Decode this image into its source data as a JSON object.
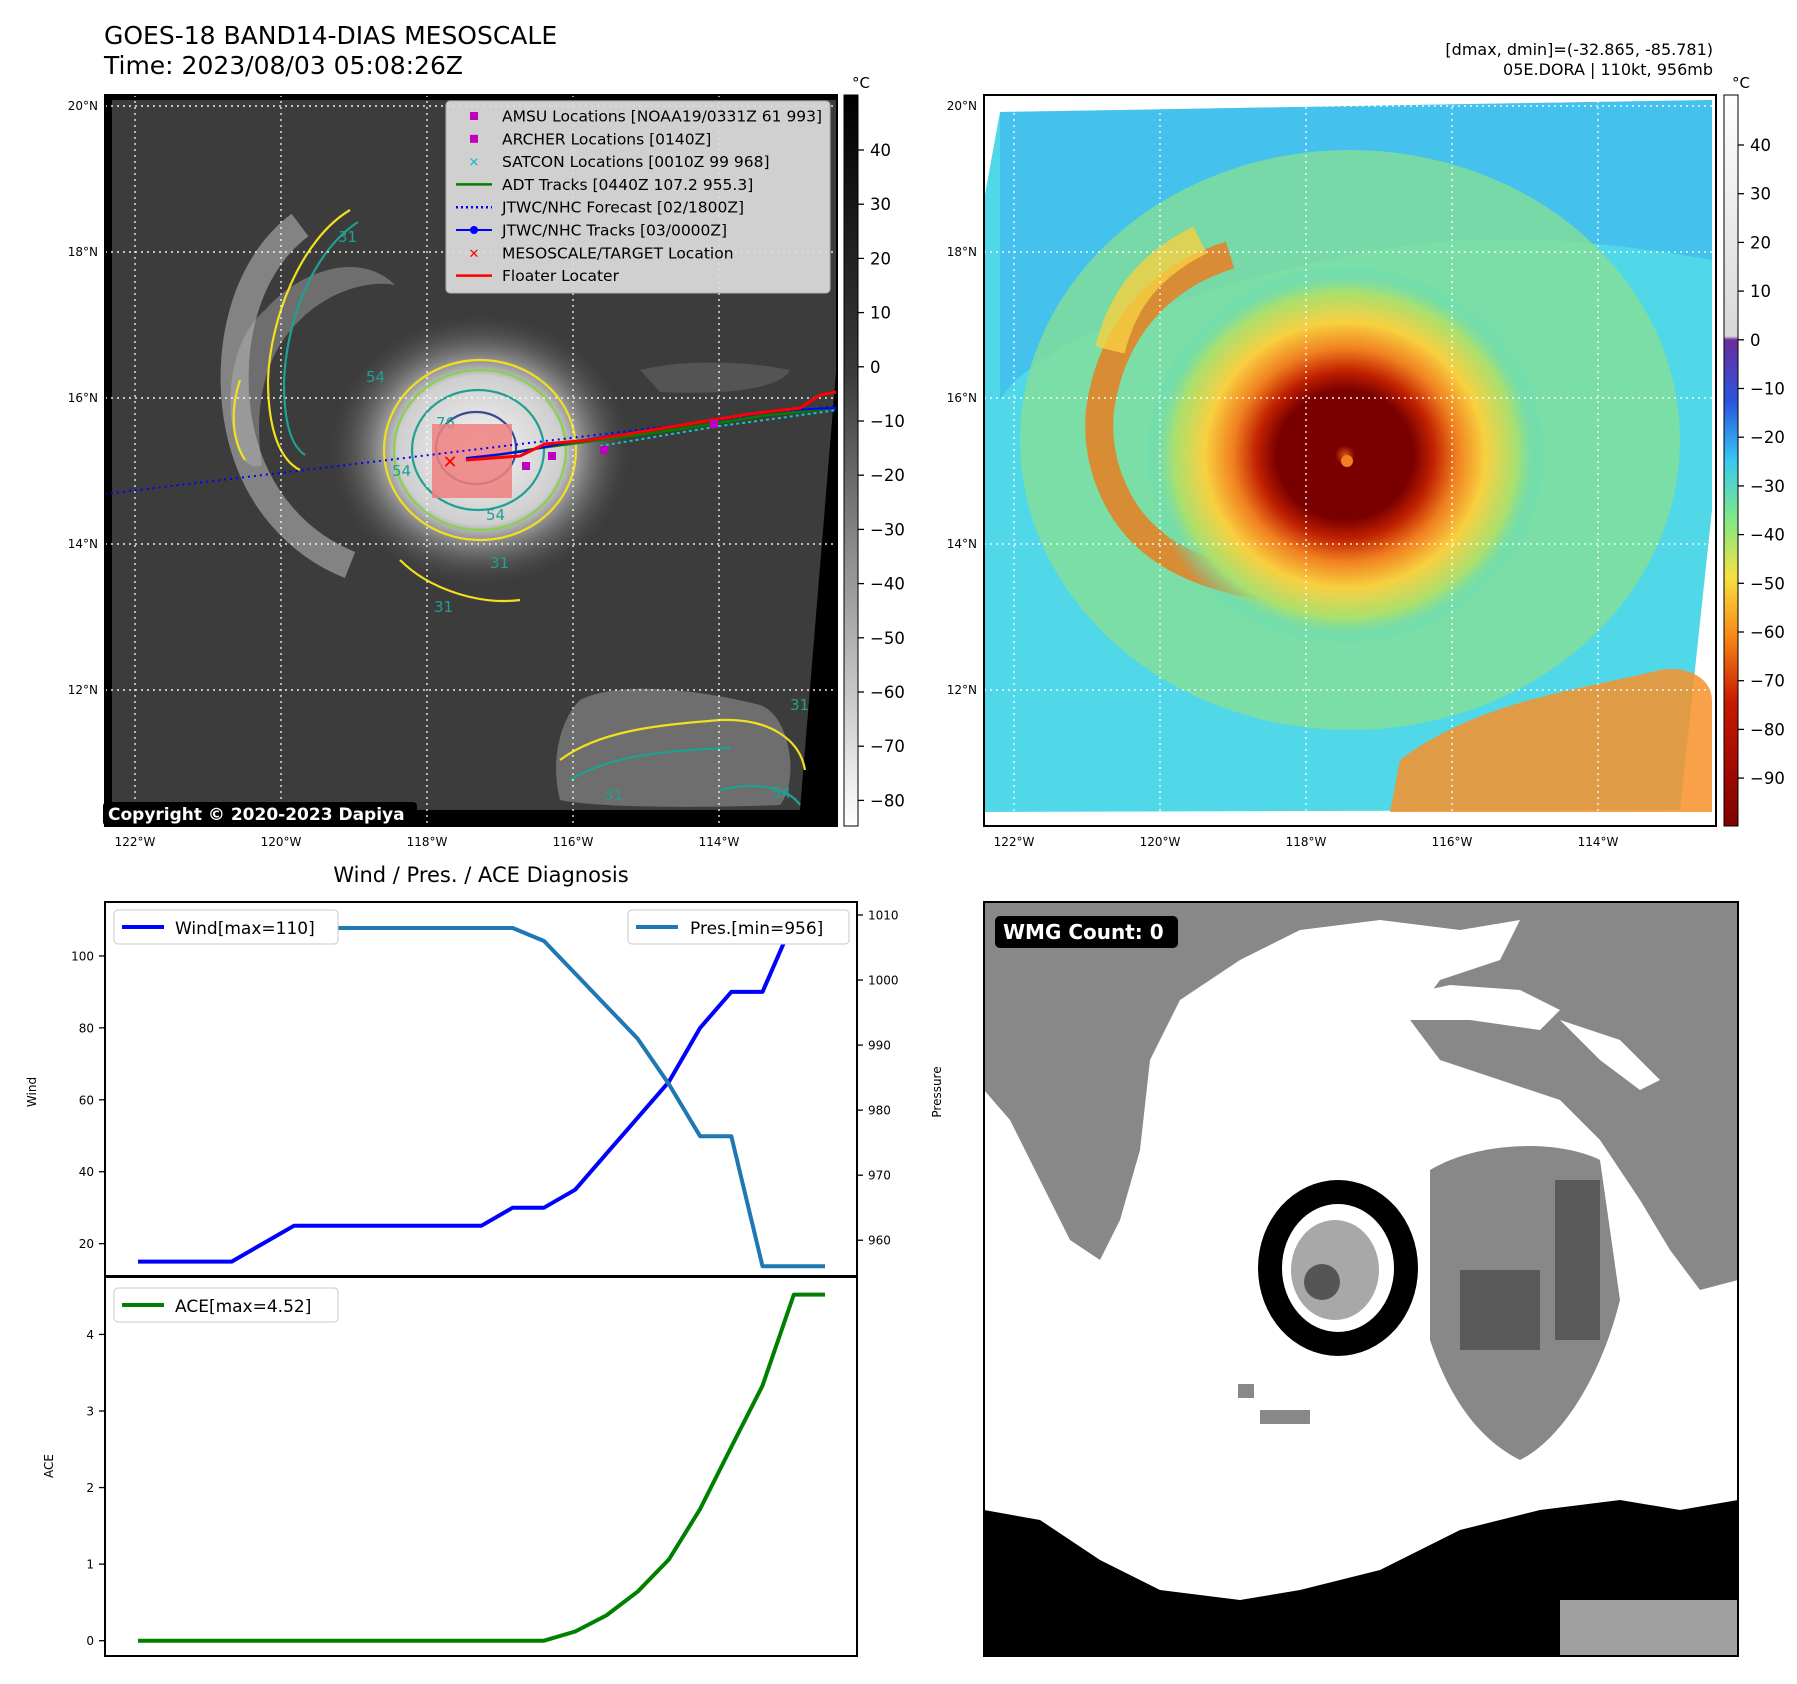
{
  "header": {
    "title_line1": "GOES-18 BAND14-DIAS MESOSCALE",
    "title_line2": "Time: 2023/08/03 05:08:26Z",
    "right_line1": "[dmax, dmin]=(-32.865, -85.781)",
    "right_line2": "05E.DORA | 110kt, 956mb"
  },
  "map_axes": {
    "lat_labels": [
      "20°N",
      "18°N",
      "16°N",
      "14°N",
      "12°N"
    ],
    "lon_labels": [
      "122°W",
      "120°W",
      "118°W",
      "116°W",
      "114°W"
    ]
  },
  "left_map": {
    "colorbar_unit": "°C",
    "colorbar_ticks": [
      "40",
      "30",
      "20",
      "10",
      "0",
      "−10",
      "−20",
      "−30",
      "−40",
      "−50",
      "−60",
      "−70",
      "−80"
    ],
    "copyright": "Copyright © 2020-2023 Dapiya",
    "contour_labels": [
      "31",
      "54",
      "76",
      "54",
      "31",
      "31",
      "54",
      "31",
      "54",
      "31"
    ],
    "legend": [
      {
        "label": "AMSU Locations [NOAA19/0331Z 61 993]",
        "color": "#bf00bf",
        "marker": "square"
      },
      {
        "label": "ARCHER Locations [0140Z]",
        "color": "#bf00bf",
        "marker": "square"
      },
      {
        "label": "SATCON Locations [0010Z 99 968]",
        "color": "#17becf",
        "marker": "x"
      },
      {
        "label": "ADT Tracks [0440Z 107.2 955.3]",
        "color": "#008000",
        "marker": "line"
      },
      {
        "label": "JTWC/NHC Forecast [02/1800Z]",
        "color": "#0000ff",
        "marker": "dotted"
      },
      {
        "label": "JTWC/NHC Tracks [03/0000Z]",
        "color": "#0000ff",
        "marker": "line-dot"
      },
      {
        "label": "MESOSCALE/TARGET Location",
        "color": "#ff0000",
        "marker": "x"
      },
      {
        "label": "Floater Locater",
        "color": "#ff0000",
        "marker": "line"
      }
    ]
  },
  "right_map": {
    "colorbar_unit": "°C",
    "colorbar_ticks": [
      "40",
      "30",
      "20",
      "10",
      "0",
      "−10",
      "−20",
      "−30",
      "−40",
      "−50",
      "−60",
      "−70",
      "−80",
      "−90"
    ]
  },
  "diagnosis": {
    "title": "Wind / Pres. / ACE Diagnosis",
    "wind_ylabel": "Wind",
    "pressure_ylabel": "Pressure",
    "ace_ylabel": "ACE",
    "wind_legend": "Wind[max=110]",
    "pres_legend": "Pres.[min=956]",
    "ace_legend": "ACE[max=4.52]"
  },
  "wmg": {
    "badge": "WMG Count: 0"
  },
  "chart_data": [
    {
      "type": "line",
      "title": "Wind / Pres. / ACE Diagnosis",
      "ylabel": "Wind",
      "y2label": "Pressure",
      "ylim": [
        11,
        115
      ],
      "y2lim": [
        954.5,
        1012
      ],
      "yticks": [
        20,
        40,
        60,
        80,
        100
      ],
      "y2ticks": [
        960,
        970,
        980,
        990,
        1000,
        1010
      ],
      "x": [
        0,
        1,
        2,
        3,
        4,
        5,
        6,
        7,
        8,
        9,
        10,
        11,
        12,
        13,
        14,
        15,
        16,
        17,
        18,
        19,
        20,
        21,
        22
      ],
      "series": [
        {
          "name": "Wind[max=110]",
          "color": "#0000ff",
          "axis": "left",
          "values": [
            15,
            15,
            15,
            15,
            20,
            25,
            25,
            25,
            25,
            25,
            25,
            25,
            30,
            30,
            35,
            45,
            55,
            65,
            80,
            90,
            90,
            110,
            110
          ]
        },
        {
          "name": "Pres.[min=956]",
          "color": "#1f77b4",
          "axis": "right",
          "values": [
            1010,
            1010,
            1010,
            1009,
            1009,
            1009,
            1008,
            1008,
            1008,
            1008,
            1008,
            1008,
            1008,
            1006,
            1001,
            996,
            991,
            984,
            976,
            976,
            956,
            956,
            956
          ]
        }
      ]
    },
    {
      "type": "line",
      "ylabel": "ACE",
      "ylim": [
        -0.2,
        4.75
      ],
      "yticks": [
        0,
        1,
        2,
        3,
        4
      ],
      "x": [
        0,
        1,
        2,
        3,
        4,
        5,
        6,
        7,
        8,
        9,
        10,
        11,
        12,
        13,
        14,
        15,
        16,
        17,
        18,
        19,
        20,
        21,
        22
      ],
      "series": [
        {
          "name": "ACE[max=4.52]",
          "color": "#008000",
          "values": [
            0,
            0,
            0,
            0,
            0,
            0,
            0,
            0,
            0,
            0,
            0,
            0,
            0,
            0,
            0.12,
            0.33,
            0.64,
            1.06,
            1.72,
            2.53,
            3.33,
            4.52,
            4.52
          ]
        }
      ]
    }
  ]
}
